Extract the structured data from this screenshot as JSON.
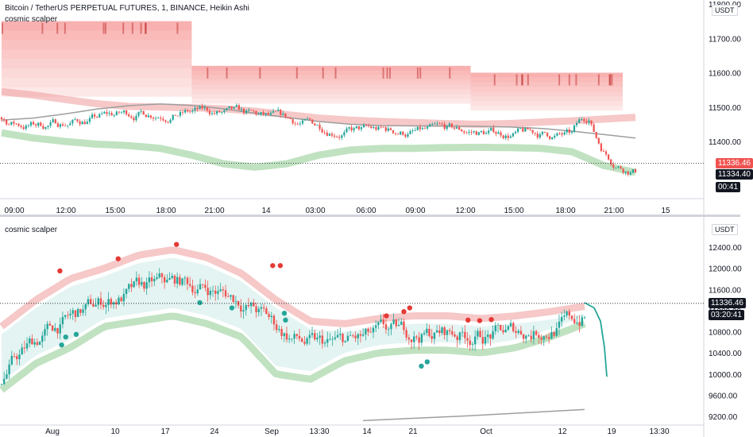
{
  "top_pane": {
    "symbol_title": "Bitcoin / TetherUS PERPETUAL FUTURES, 1, BINANCE, Heikin Ashi",
    "indicator_label": "cosmic scalper",
    "currency_badge": "USDT",
    "last_price_tag": "11336.46",
    "bar_close_tag": "11334.40",
    "countdown_tag": "00:41",
    "colors": {
      "last_price": "#ef5350",
      "bar_close": "#131722",
      "countdown": "#131722"
    }
  },
  "bottom_pane": {
    "indicator_label": "cosmic scalper",
    "currency_badge": "USDT",
    "last_price_tag": "11336.46",
    "countdown_tag": "03:20:41",
    "colors": {
      "last_price": "#131722",
      "countdown": "#131722"
    }
  },
  "chart_data": [
    {
      "type": "candlestick",
      "title": "Bitcoin / TetherUS PERPETUAL FUTURES, 1, BINANCE, Heikin Ashi",
      "ylim": [
        11250,
        11800
      ],
      "y_ticks": [
        "11400.00",
        "11500.00",
        "11600.00",
        "11700.00",
        "11800.00"
      ],
      "x_tick_labels": [
        "09:00",
        "12:00",
        "15:00",
        "18:00",
        "21:00",
        "14",
        "03:00",
        "06:00",
        "09:00",
        "12:00",
        "15:00",
        "18:00",
        "21:00",
        "15"
      ],
      "last_price": 11336.46,
      "ma_line": [
        11462,
        11468,
        11480,
        11494,
        11504,
        11509,
        11505,
        11495,
        11482,
        11470,
        11458,
        11450,
        11446,
        11445,
        11445,
        11444,
        11442,
        11438,
        11430,
        11420,
        11410
      ],
      "upper_band": [
        11545,
        11535,
        11522,
        11510,
        11502,
        11500,
        11498,
        11495,
        11488,
        11478,
        11468,
        11462,
        11458,
        11455,
        11452,
        11450,
        11452,
        11456,
        11460,
        11465,
        11470
      ],
      "lower_band": [
        11425,
        11410,
        11400,
        11392,
        11388,
        11380,
        11360,
        11335,
        11325,
        11335,
        11360,
        11375,
        11380,
        11380,
        11382,
        11383,
        11382,
        11380,
        11370,
        11330,
        11310
      ],
      "resistance_zones": [
        {
          "from": 11530,
          "to": 11750,
          "start": 0.0,
          "end": 0.3
        },
        {
          "from": 11510,
          "to": 11620,
          "start": 0.3,
          "end": 0.74
        },
        {
          "from": 11490,
          "to": 11600,
          "start": 0.74,
          "end": 0.98
        }
      ]
    },
    {
      "type": "candlestick",
      "ylim": [
        9200,
        12800
      ],
      "y_ticks": [
        "9200.00",
        "9600.00",
        "10000.00",
        "10400.00",
        "10800.00",
        "11200.00",
        "11600.00",
        "12000.00",
        "12400.00"
      ],
      "x_tick_labels": [
        "Aug",
        "10",
        "17",
        "24",
        "Sep",
        "13:30",
        "14",
        "21",
        "Oct",
        "12",
        "19",
        "13:30"
      ],
      "last_price": 11336.46,
      "upper_band": [
        10900,
        11400,
        11800,
        12000,
        12250,
        12350,
        12200,
        11900,
        11400,
        11000,
        10950,
        11050,
        11100,
        11100,
        11050,
        11100,
        11180,
        11280
      ],
      "lower_band": [
        9700,
        10200,
        10500,
        10900,
        11000,
        11100,
        10950,
        10700,
        10000,
        9900,
        10250,
        10400,
        10450,
        10450,
        10400,
        10500,
        10700,
        10950
      ],
      "projection": [
        11350,
        11250,
        11000,
        10500,
        9950
      ],
      "sell_signals": [
        11950,
        12180,
        12450,
        12050,
        12050,
        11100,
        11180,
        11250,
        11020,
        11010,
        11030
      ],
      "buy_signals": [
        10550,
        10700,
        10750,
        11350,
        11250,
        11150,
        11020,
        10150,
        10230
      ]
    }
  ]
}
